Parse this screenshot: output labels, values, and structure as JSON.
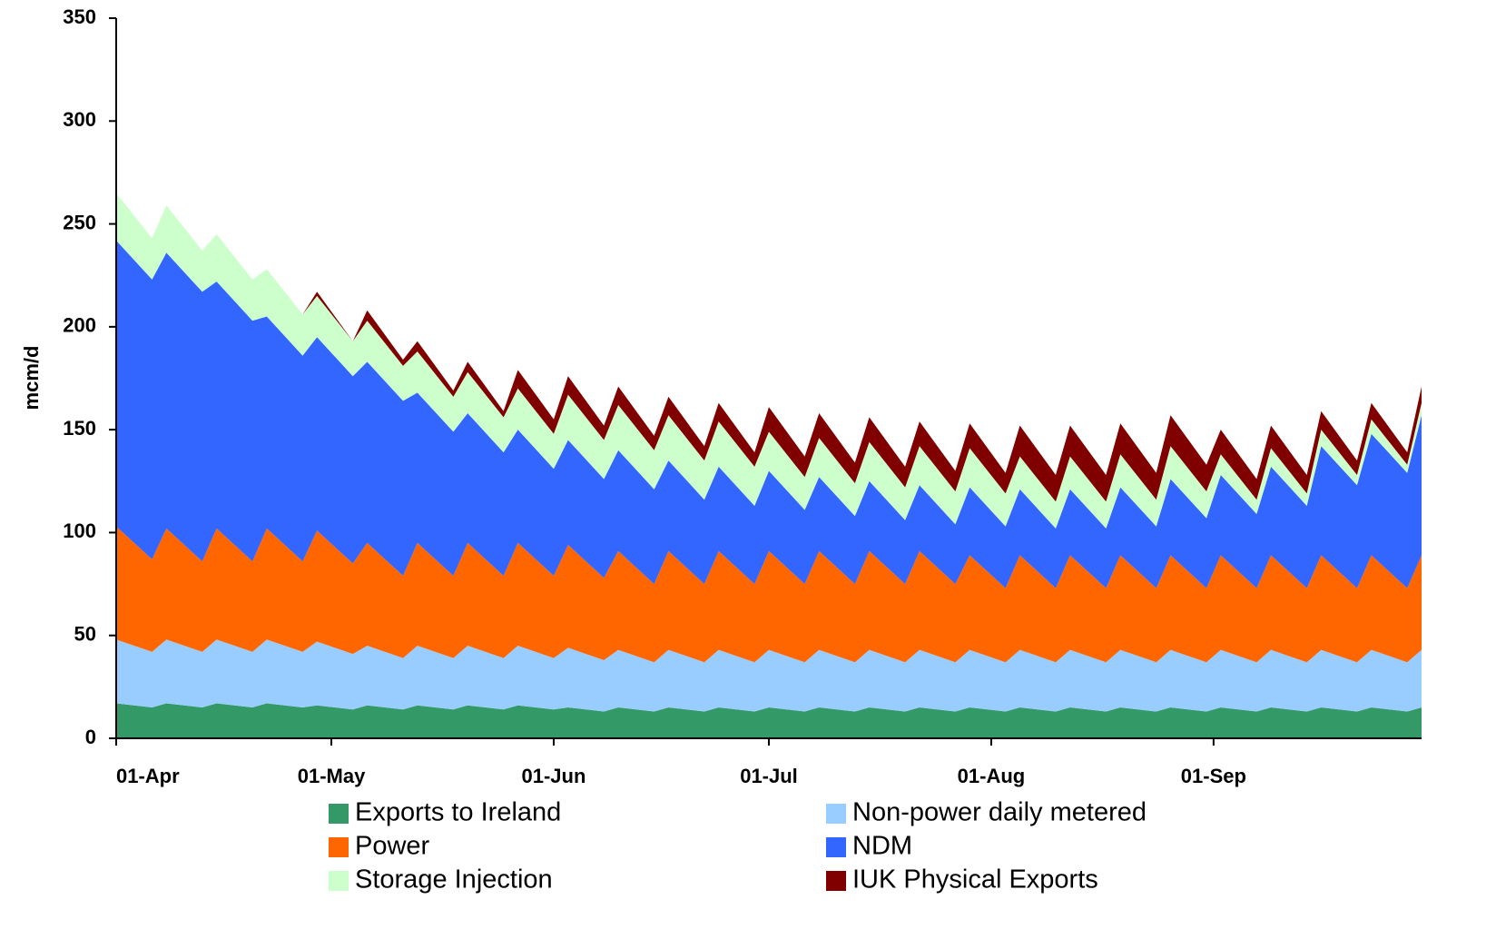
{
  "chart_data": {
    "type": "stacked-area",
    "y_label": "mcm/d",
    "x": [
      0,
      5,
      7,
      12,
      14,
      19,
      21,
      26,
      28,
      33,
      35,
      40,
      42,
      47,
      49,
      54,
      56,
      61,
      63,
      68,
      70,
      75,
      77,
      82,
      84,
      89,
      91,
      96,
      98,
      103,
      105,
      110,
      112,
      117,
      119,
      124,
      126,
      131,
      133,
      138,
      140,
      145,
      147,
      152,
      154,
      159,
      161,
      166,
      168,
      173,
      175,
      180,
      182
    ],
    "xlim": [
      0,
      182
    ],
    "xticks": [
      {
        "value": 0,
        "label": "01-Apr"
      },
      {
        "value": 30,
        "label": "01-May"
      },
      {
        "value": 61,
        "label": "01-Jun"
      },
      {
        "value": 91,
        "label": "01-Jul"
      },
      {
        "value": 122,
        "label": "01-Aug"
      },
      {
        "value": 153,
        "label": "01-Sep"
      }
    ],
    "ylim": [
      0,
      350
    ],
    "yticks": [
      0,
      50,
      100,
      150,
      200,
      250,
      300,
      350
    ],
    "series": [
      {
        "name": "Exports to Ireland",
        "color": "#339966",
        "values": [
          17,
          15,
          17,
          15,
          17,
          15,
          17,
          15,
          16,
          14,
          16,
          14,
          16,
          14,
          16,
          14,
          16,
          14,
          15,
          13,
          15,
          13,
          15,
          13,
          15,
          13,
          15,
          13,
          15,
          13,
          15,
          13,
          15,
          13,
          15,
          13,
          15,
          13,
          15,
          13,
          15,
          13,
          15,
          13,
          15,
          13,
          15,
          13,
          15,
          13,
          15,
          13,
          15
        ]
      },
      {
        "name": "Non-power daily metered",
        "color": "#99ccff",
        "values": [
          31,
          27,
          31,
          27,
          31,
          27,
          31,
          27,
          31,
          27,
          29,
          25,
          29,
          25,
          29,
          25,
          29,
          25,
          29,
          25,
          28,
          24,
          28,
          24,
          28,
          24,
          28,
          24,
          28,
          24,
          28,
          24,
          28,
          24,
          28,
          24,
          28,
          24,
          28,
          24,
          28,
          24,
          28,
          24,
          28,
          24,
          28,
          24,
          28,
          24,
          28,
          24,
          28
        ]
      },
      {
        "name": "Power",
        "color": "#ff6600",
        "values": [
          55,
          45,
          54,
          44,
          54,
          44,
          54,
          44,
          54,
          44,
          50,
          40,
          50,
          40,
          50,
          40,
          50,
          40,
          50,
          40,
          48,
          38,
          48,
          38,
          48,
          38,
          48,
          38,
          48,
          38,
          48,
          38,
          48,
          38,
          46,
          36,
          46,
          36,
          46,
          36,
          46,
          36,
          46,
          36,
          46,
          36,
          46,
          36,
          46,
          36,
          46,
          36,
          46
        ]
      },
      {
        "name": "NDM",
        "color": "#3366ff",
        "values": [
          139,
          136,
          134,
          131,
          120,
          117,
          103,
          100,
          94,
          91,
          88,
          85,
          73,
          70,
          63,
          60,
          55,
          52,
          51,
          48,
          49,
          46,
          44,
          41,
          41,
          38,
          39,
          36,
          36,
          33,
          34,
          31,
          32,
          29,
          33,
          30,
          32,
          29,
          32,
          29,
          33,
          30,
          37,
          34,
          39,
          36,
          43,
          40,
          53,
          50,
          59,
          56,
          68
        ]
      },
      {
        "name": "Storage Injection",
        "color": "#ccffcc",
        "values": [
          23,
          20,
          23,
          20,
          23,
          20,
          23,
          20,
          20,
          17,
          20,
          17,
          20,
          17,
          20,
          17,
          20,
          17,
          22,
          19,
          22,
          19,
          22,
          19,
          22,
          19,
          19,
          16,
          19,
          16,
          19,
          16,
          19,
          16,
          19,
          16,
          16,
          13,
          16,
          13,
          16,
          13,
          16,
          13,
          10,
          7,
          9,
          6,
          8,
          5,
          7,
          4,
          6
        ]
      },
      {
        "name": "IUK Physical Exports",
        "color": "#800000",
        "values": [
          0,
          0,
          0,
          0,
          0,
          0,
          0,
          0,
          2,
          0,
          5,
          3,
          5,
          3,
          5,
          3,
          9,
          7,
          9,
          7,
          9,
          7,
          9,
          7,
          9,
          7,
          12,
          10,
          12,
          10,
          12,
          10,
          12,
          10,
          12,
          10,
          15,
          13,
          15,
          13,
          15,
          13,
          15,
          13,
          12,
          10,
          11,
          9,
          9,
          7,
          8,
          6,
          8
        ]
      }
    ]
  }
}
